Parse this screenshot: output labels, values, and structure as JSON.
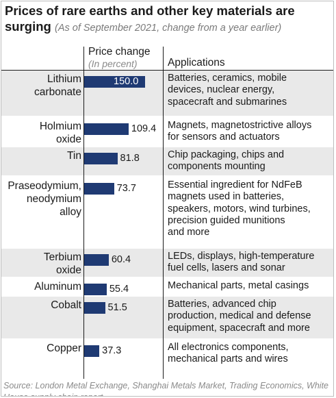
{
  "header": {
    "title_main": "Prices of rare earths and other key materials are surging",
    "title_note": "(As of September 2021, change from a year earlier)",
    "col_price": "Price change",
    "col_price_unit": "(In percent)",
    "col_apps": "Applications"
  },
  "source": "Source: London Metal Exchange, Shanghai Metals Market, Trading Economics, White House supply chain report",
  "chart_data": {
    "type": "bar",
    "orientation": "horizontal",
    "title": "Prices of rare earths and other key materials are surging",
    "subtitle": "(As of September 2021, change from a year earlier)",
    "xlabel": "Price change (In percent)",
    "categories": [
      "Lithium carbonate",
      "Holmium oxide",
      "Tin",
      "Praseodymium, neodymium alloy",
      "Terbium oxide",
      "Aluminum",
      "Cobalt",
      "Copper"
    ],
    "values": [
      150.0,
      109.4,
      81.8,
      73.7,
      60.4,
      55.4,
      51.5,
      37.3
    ],
    "value_labels": [
      "150.0",
      "109.4",
      "81.8",
      "73.7",
      "60.4",
      "55.4",
      "51.5",
      "37.3"
    ],
    "xlim": [
      0,
      150
    ],
    "bar_color": "#1f3a73",
    "row_shade_color": "#e9e9e9"
  },
  "rows": [
    {
      "material": "Lithium\ncarbonate",
      "application": "Batteries, ceramics, mobile\ndevices, nuclear energy,\nspacecraft and submarines"
    },
    {
      "material": "Holmium\noxide",
      "application": "Magnets, magnetostrictive alloys\nfor sensors and actuators"
    },
    {
      "material": "Tin",
      "application": "Chip packaging, chips and\ncomponents mounting"
    },
    {
      "material": "Praseodymium,\nneodymium\nalloy",
      "application": "Essential ingredient for NdFeB\nmagnets used in batteries,\nspeakers, motors, wind turbines,\nprecision guided munitions\nand more"
    },
    {
      "material": "Terbium\noxide",
      "application": "LEDs, displays, high-temperature\nfuel cells, lasers and sonar"
    },
    {
      "material": "Aluminum",
      "application": "Mechanical parts, metal casings"
    },
    {
      "material": "Cobalt",
      "application": "Batteries, advanced chip\nproduction, medical and defense\nequipment, spacecraft and more"
    },
    {
      "material": "Copper",
      "application": "All electronics components,\nmechanical parts and wires"
    }
  ]
}
